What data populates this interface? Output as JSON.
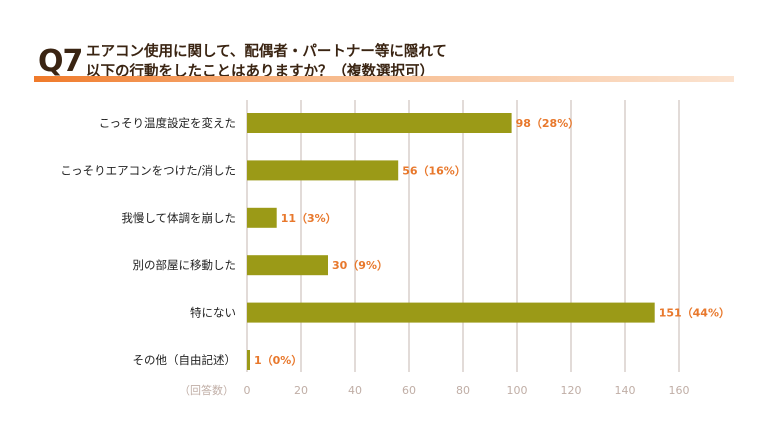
{
  "header": {
    "q_number": "Q7",
    "title_line1": "エアコン使用に関して、配偶者・パートナー等に隠れて",
    "title_line2": "以下の行動をしたことはありますか？（複数選択可）"
  },
  "colors": {
    "bar": "#9b9a17",
    "label": "#e8782c",
    "grid": "#d8cfcc",
    "axis_text": "#c0aea6",
    "accent": "#f07a2a"
  },
  "chart_data": {
    "type": "bar",
    "orientation": "horizontal",
    "categories": [
      "こっそり温度設定を変えた",
      "こっそりエアコンをつけた/消した",
      "我慢して体調を崩した",
      "別の部屋に移動した",
      "特にない",
      "その他（自由記述）"
    ],
    "values": [
      98,
      56,
      11,
      30,
      151,
      1
    ],
    "data_labels": [
      "98（28%）",
      "56（16%）",
      "11（3%）",
      "30（9%）",
      "151（44%）",
      "1（0%）"
    ],
    "xlabel": "（回答数）",
    "xlim": [
      0,
      160
    ],
    "xticks": [
      0,
      20,
      40,
      60,
      80,
      100,
      120,
      140,
      160
    ],
    "grid": true
  }
}
